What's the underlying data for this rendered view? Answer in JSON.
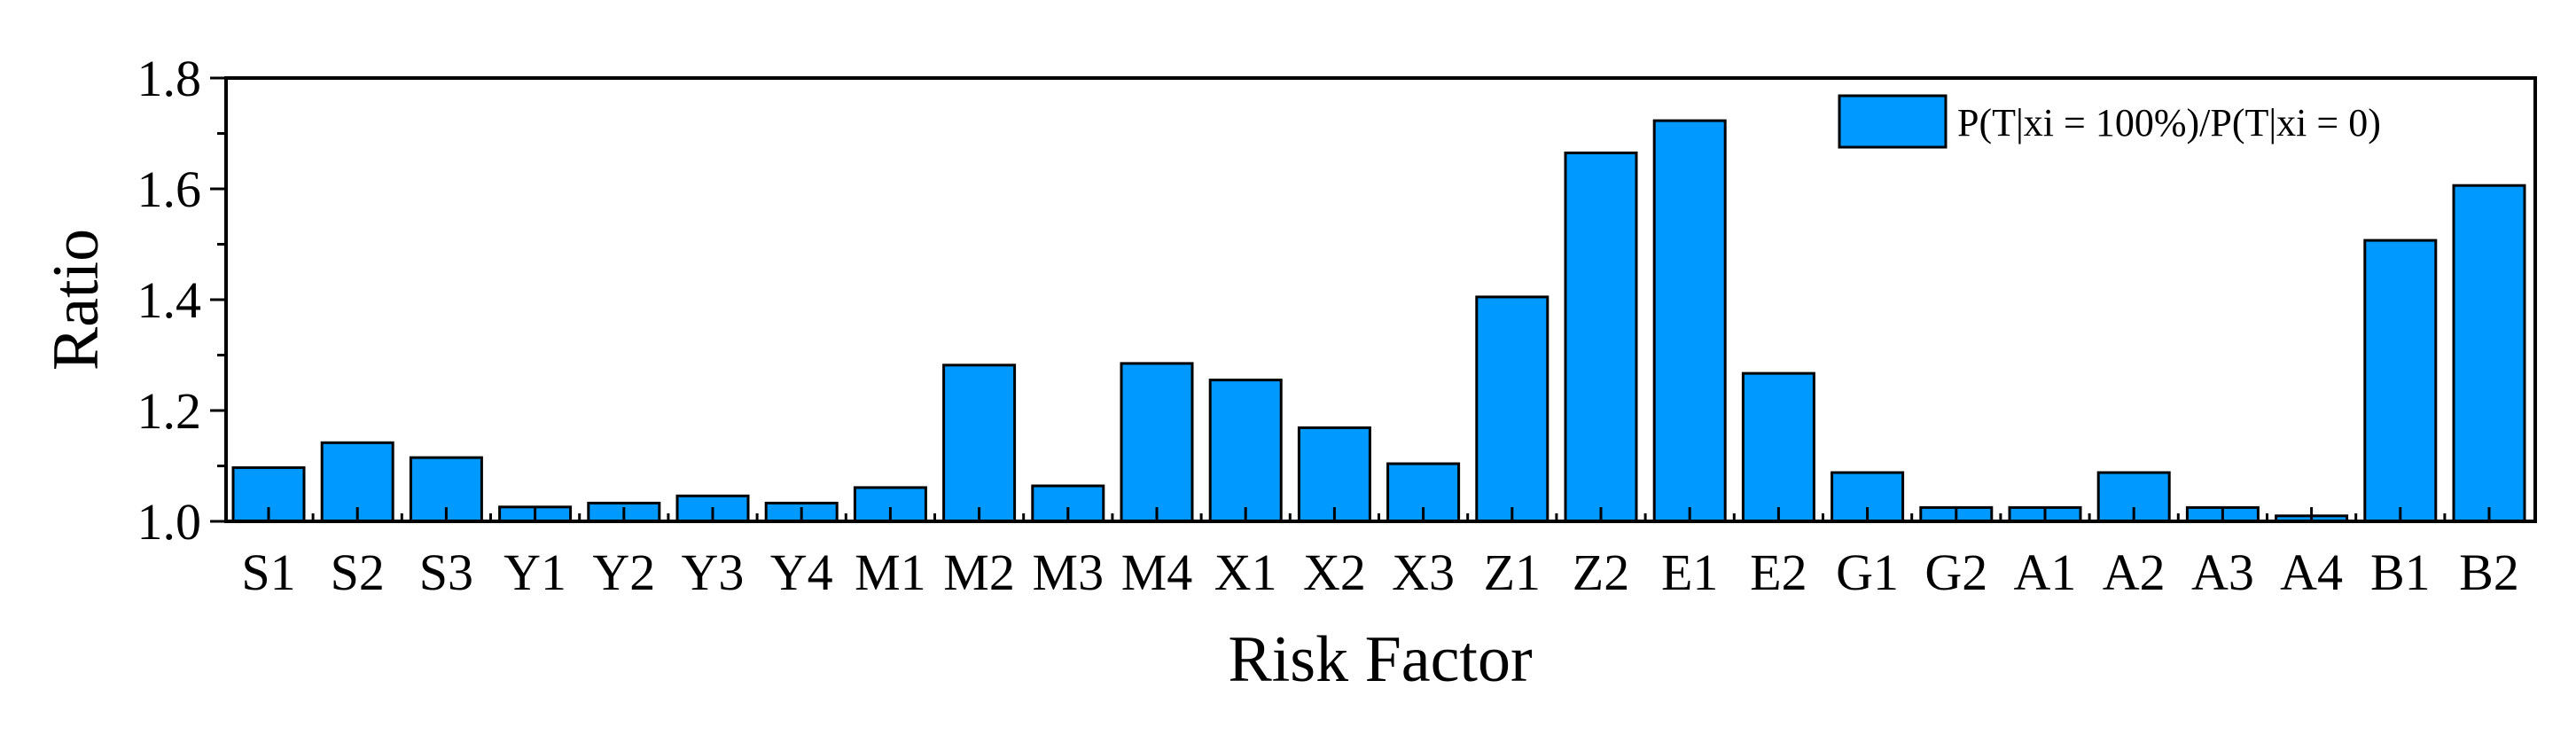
{
  "chart_data": {
    "type": "bar",
    "title": "",
    "xlabel": "Risk Factor",
    "ylabel": "Ratio",
    "ylim": [
      1.0,
      1.8
    ],
    "yticks": [
      "1.0",
      "1.2",
      "1.4",
      "1.6",
      "1.8"
    ],
    "categories": [
      "S1",
      "S2",
      "S3",
      "Y1",
      "Y2",
      "Y3",
      "Y4",
      "M1",
      "M2",
      "M3",
      "M4",
      "X1",
      "X2",
      "X3",
      "Z1",
      "Z2",
      "E1",
      "E2",
      "G1",
      "G2",
      "A1",
      "A2",
      "A3",
      "A4",
      "B1",
      "B2"
    ],
    "series": [
      {
        "name": "P(T|xi = 100%)/P(T|xi = 0)",
        "color": "#0099ff",
        "values": [
          1.097,
          1.142,
          1.115,
          1.026,
          1.033,
          1.046,
          1.033,
          1.061,
          1.282,
          1.064,
          1.285,
          1.255,
          1.169,
          1.104,
          1.405,
          1.665,
          1.723,
          1.267,
          1.088,
          1.025,
          1.025,
          1.088,
          1.025,
          1.01,
          1.507,
          1.606
        ]
      }
    ],
    "legend_position": "top-right",
    "grid": false
  }
}
